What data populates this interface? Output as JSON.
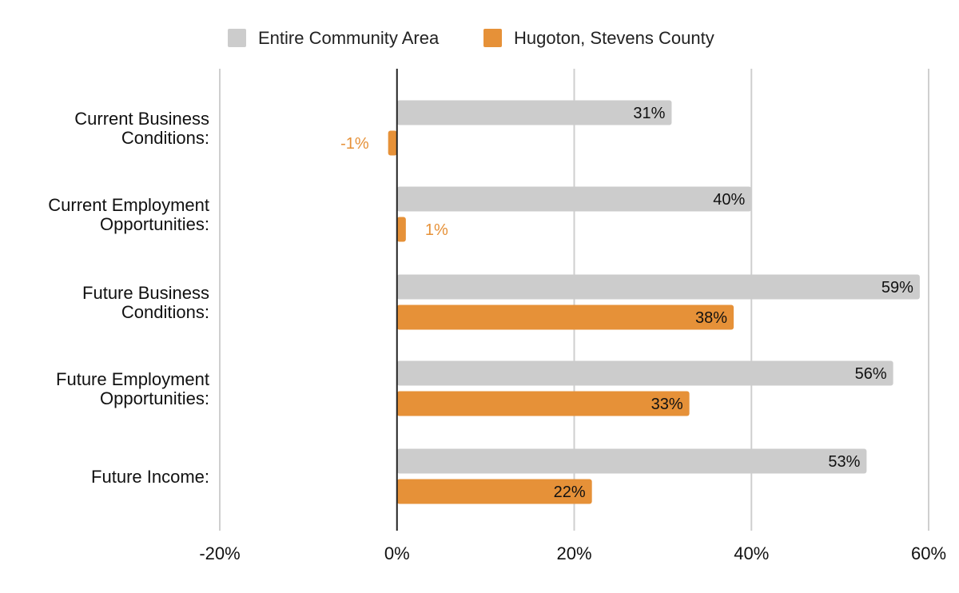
{
  "chart_data": {
    "type": "bar",
    "orientation": "horizontal",
    "title": "",
    "xlabel": "",
    "ylabel": "",
    "xlim": [
      -20,
      60
    ],
    "x_ticks": [
      -20,
      0,
      20,
      40,
      60
    ],
    "x_tick_labels": [
      "-20%",
      "0%",
      "20%",
      "40%",
      "60%"
    ],
    "grid": true,
    "legend_position": "top-center",
    "categories": [
      [
        "Current Business",
        "Conditions:"
      ],
      [
        "Current Employment",
        "Opportunities:"
      ],
      [
        "Future Business",
        "Conditions:"
      ],
      [
        "Future Employment",
        "Opportunities:"
      ],
      [
        "Future Income:"
      ]
    ],
    "series": [
      {
        "name": "Entire Community Area",
        "color": "#cccccc",
        "label_color": "#111111",
        "values": [
          31,
          40,
          59,
          56,
          53
        ],
        "labels": [
          "31%",
          "40%",
          "59%",
          "56%",
          "53%"
        ]
      },
      {
        "name": "Hugoton, Stevens County",
        "color": "#e69138",
        "label_color": "#111111",
        "outside_label_color": "#e69138",
        "values": [
          -1,
          1,
          38,
          33,
          22
        ],
        "labels": [
          "-1%",
          "1%",
          "38%",
          "33%",
          "22%"
        ]
      }
    ]
  }
}
